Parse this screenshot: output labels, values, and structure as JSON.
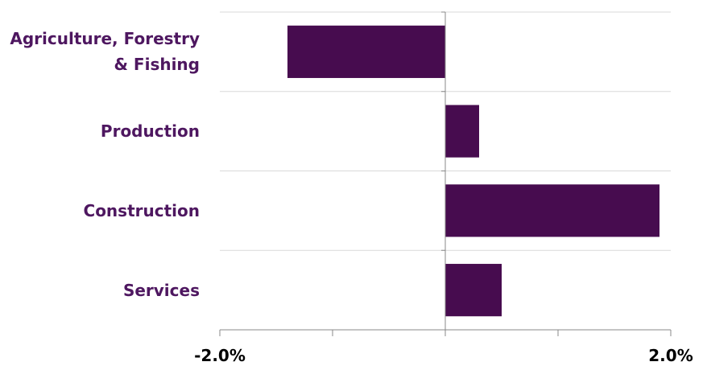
{
  "chart_data": {
    "type": "hbar",
    "categories": [
      "Agriculture, Forestry\n& Fishing",
      "Production",
      "Construction",
      "Services"
    ],
    "values": [
      -1.4,
      0.3,
      1.9,
      0.5
    ],
    "color": "#470c4f",
    "xlim": [
      -2,
      2
    ],
    "xticks": [
      {
        "value": -2,
        "label": "-2.0%"
      },
      {
        "value": 2,
        "label": "2.0%"
      }
    ],
    "minor_xticks": [
      -1,
      0,
      1
    ],
    "grid": true
  }
}
